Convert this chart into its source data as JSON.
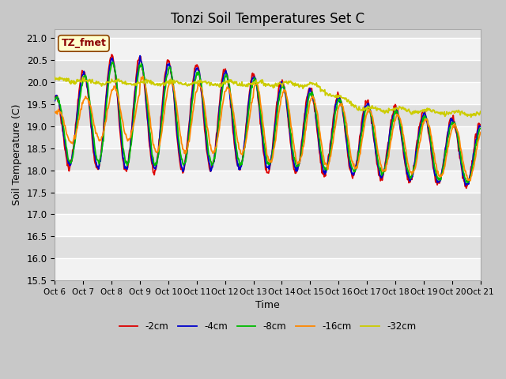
{
  "title": "Tonzi Soil Temperatures Set C",
  "ylabel": "Soil Temperature (C)",
  "xlabel": "Time",
  "ylim": [
    15.5,
    21.2
  ],
  "legend_label": "TZ_fmet",
  "series_labels": [
    "-2cm",
    "-4cm",
    "-8cm",
    "-16cm",
    "-32cm"
  ],
  "series_colors": [
    "#dd0000",
    "#0000cc",
    "#00bb00",
    "#ff8800",
    "#cccc00"
  ],
  "line_widths": [
    1.3,
    1.3,
    1.3,
    1.3,
    1.3
  ],
  "fig_bg": "#c8c8c8",
  "plot_bg": "#e0e0e0",
  "xtick_labels": [
    "Oct 6",
    "Oct 7",
    "Oct 8",
    "Oct 9",
    "Oct 10",
    "Oct 11",
    "Oct 12",
    "Oct 13",
    "Oct 14",
    "Oct 15",
    "Oct 16",
    "Oct 17",
    "Oct 18",
    "Oct 19",
    "Oct 20",
    "Oct 21"
  ],
  "n_points": 720,
  "title_fontsize": 12
}
